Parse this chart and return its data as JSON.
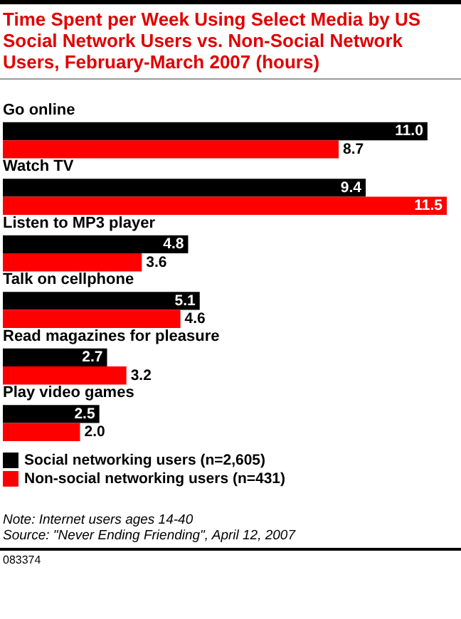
{
  "chart_data": {
    "type": "bar",
    "orientation": "horizontal",
    "title": "Time Spent per Week Using Select Media by US Social Network Users vs. Non-Social Network Users, February-March 2007 (hours)",
    "categories": [
      "Go online",
      "Watch TV",
      "Listen to MP3 player",
      "Talk on cellphone",
      "Read magazines for pleasure",
      "Play video games"
    ],
    "series": [
      {
        "name": "Social networking users (n=2,605)",
        "color": "#000000",
        "values": [
          11.0,
          9.4,
          4.8,
          5.1,
          2.7,
          2.5
        ],
        "value_labels": [
          "11.0",
          "9.4",
          "4.8",
          "5.1",
          "2.7",
          "2.5"
        ]
      },
      {
        "name": "Non-social networking users (n=431)",
        "color": "#ff0000",
        "values": [
          8.7,
          11.5,
          3.6,
          4.6,
          3.2,
          2.0
        ],
        "value_labels": [
          "8.7",
          "11.5",
          "3.6",
          "4.6",
          "3.2",
          "2.0"
        ]
      }
    ],
    "legend": "bottom",
    "annotations": [
      "Note: Internet users ages 14-40",
      "Source: \"Never Ending Friending\", April 12, 2007",
      "083374"
    ]
  }
}
